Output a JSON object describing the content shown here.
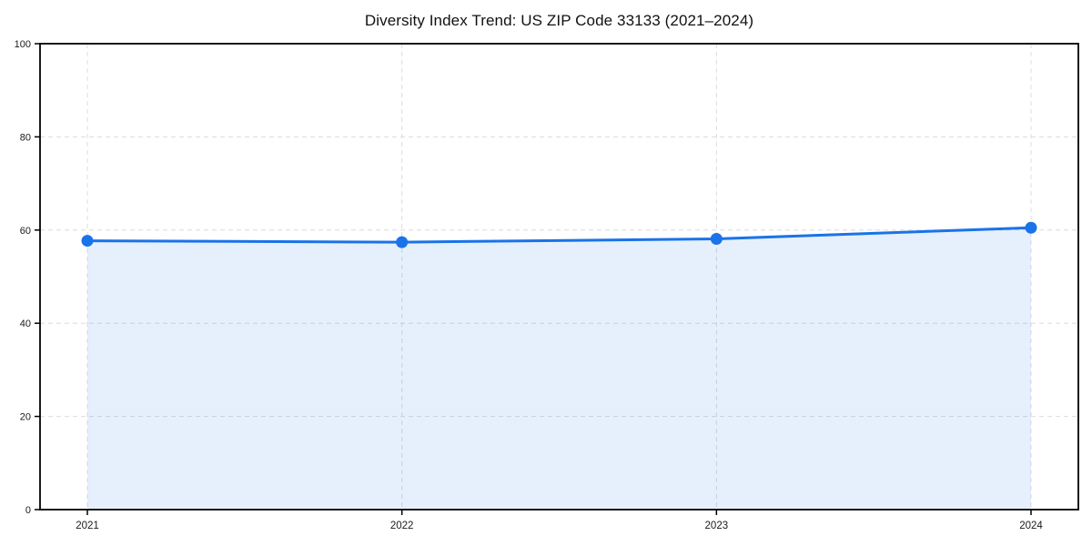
{
  "chart_data": {
    "type": "area",
    "title": "Diversity Index Trend: US ZIP Code 33133 (2021–2024)",
    "categories": [
      "2021",
      "2022",
      "2023",
      "2024"
    ],
    "series": [
      {
        "name": "Diversity Index",
        "values": [
          57.7,
          57.4,
          58.1,
          60.5
        ]
      }
    ],
    "xlabel": "",
    "ylabel": "",
    "ylim": [
      0,
      100
    ],
    "yticks": [
      0,
      20,
      40,
      60,
      80,
      100
    ],
    "grid": true,
    "grid_style": "dashed",
    "legend_position": "none",
    "colors": {
      "line": "#1a73e8",
      "marker": "#1a73e8",
      "fill": "rgba(26,115,232,0.11)",
      "gridline": "#dcdcdc",
      "spine": "#000000",
      "tick_label": "#1a1a1a",
      "title": "#111111",
      "background": "#ffffff"
    }
  }
}
